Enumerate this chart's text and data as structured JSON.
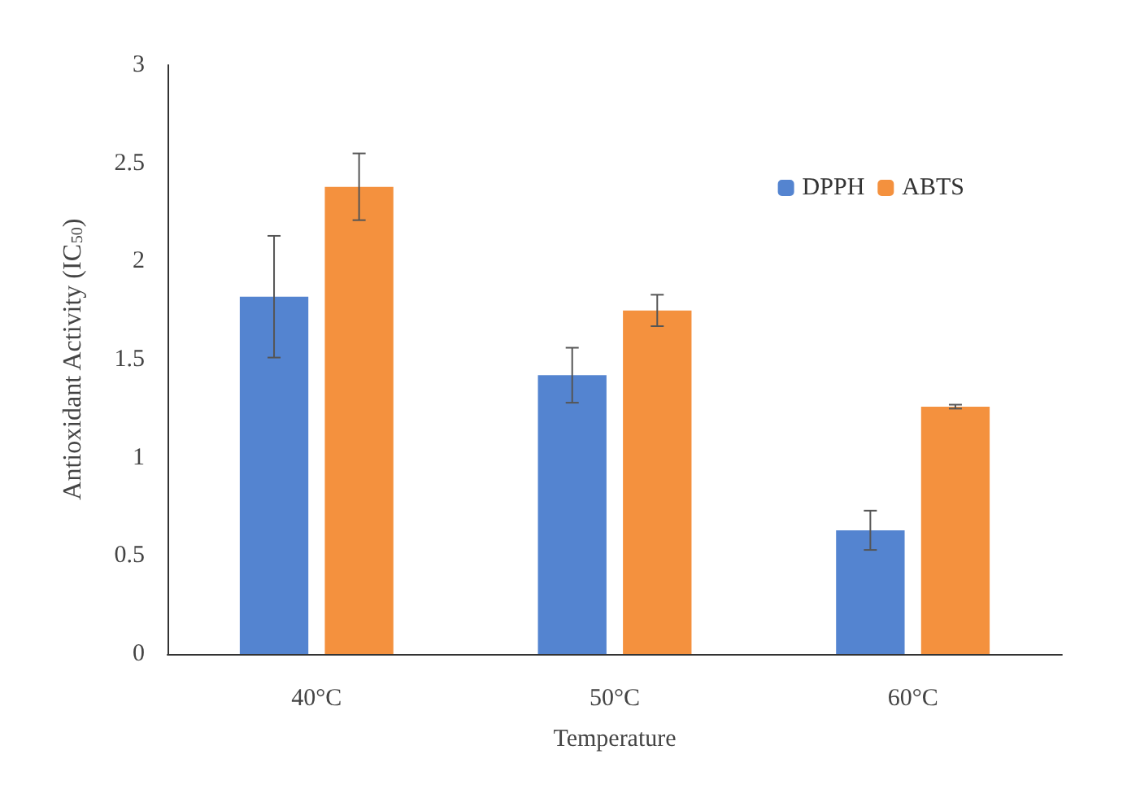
{
  "chart_data": {
    "type": "bar",
    "xlabel": "Temperature",
    "ylabel": "Antioxidant Activity (IC$_{50}$)",
    "categories": [
      "40°C",
      "50°C",
      "60°C"
    ],
    "series": [
      {
        "name": "DPPH",
        "color": "#5484d0",
        "values": [
          1.82,
          1.42,
          0.63
        ],
        "errors": [
          0.31,
          0.14,
          0.1
        ]
      },
      {
        "name": "ABTS",
        "color": "#f4913e",
        "values": [
          2.38,
          1.75,
          1.26
        ],
        "errors": [
          0.17,
          0.08,
          0.01
        ]
      }
    ],
    "ylim": [
      0,
      3
    ],
    "yticks": [
      0,
      0.5,
      1,
      1.5,
      2,
      2.5,
      3
    ],
    "grid": false,
    "legend": "top right"
  }
}
